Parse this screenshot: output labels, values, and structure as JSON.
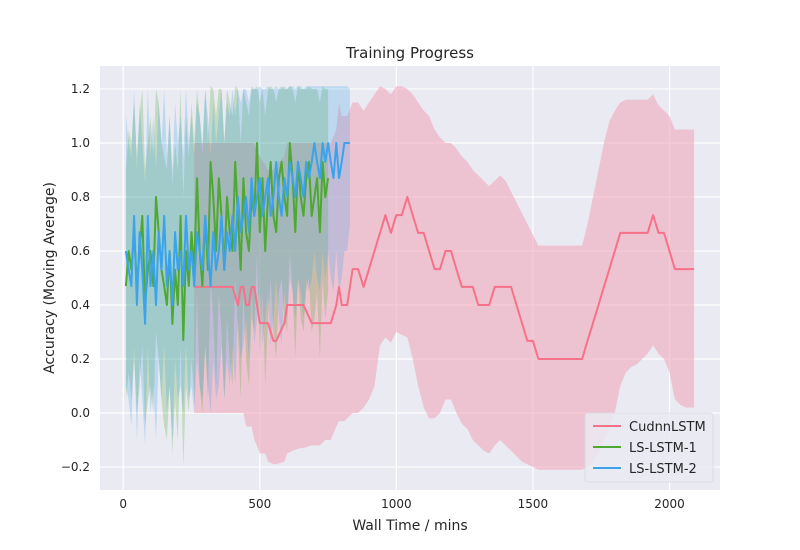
{
  "chart_data": {
    "type": "line",
    "title": "Training Progress",
    "xlabel": "Wall Time / mins",
    "ylabel": "Accuracy (Moving Average)",
    "xlim": [
      -85,
      2185
    ],
    "ylim": [
      -0.285,
      1.285
    ],
    "xticks": [
      0,
      500,
      1000,
      1500,
      2000
    ],
    "xtick_labels": [
      "0",
      "500",
      "1000",
      "1500",
      "2000"
    ],
    "yticks": [
      -0.2,
      0.0,
      0.2,
      0.4,
      0.6,
      0.8,
      1.0,
      1.2
    ],
    "ytick_labels": [
      "−0.2",
      "0.0",
      "0.2",
      "0.4",
      "0.6",
      "0.8",
      "1.0",
      "1.2"
    ],
    "grid": true,
    "background_color": "#eaeaf2",
    "legend_position": "lower-right",
    "series": [
      {
        "name": "CudnnLSTM",
        "color": "#f77189",
        "band_color": "#f0a8bb",
        "band_opacity": 0.6,
        "x": [
          260,
          300,
          400,
          420,
          430,
          440,
          450,
          460,
          470,
          480,
          490,
          500,
          520,
          530,
          550,
          560,
          590,
          600,
          620,
          650,
          660,
          690,
          700,
          720,
          740,
          750,
          760,
          780,
          790,
          800,
          810,
          820,
          840,
          860,
          880,
          900,
          920,
          940,
          960,
          980,
          1000,
          1020,
          1040,
          1060,
          1080,
          1100,
          1120,
          1140,
          1160,
          1180,
          1200,
          1220,
          1240,
          1260,
          1280,
          1300,
          1320,
          1340,
          1360,
          1380,
          1400,
          1420,
          1440,
          1460,
          1480,
          1500,
          1520,
          1540,
          1560,
          1580,
          1600,
          1620,
          1640,
          1660,
          1680,
          1700,
          1720,
          1740,
          1760,
          1780,
          1800,
          1820,
          1840,
          1860,
          1880,
          1900,
          1920,
          1940,
          1960,
          1980,
          2000,
          2020,
          2040,
          2060,
          2080,
          2090
        ],
        "values": [
          0.467,
          0.467,
          0.467,
          0.4,
          0.467,
          0.467,
          0.4,
          0.4,
          0.467,
          0.467,
          0.4,
          0.333,
          0.333,
          0.333,
          0.267,
          0.267,
          0.333,
          0.4,
          0.4,
          0.4,
          0.4,
          0.333,
          0.333,
          0.333,
          0.333,
          0.333,
          0.333,
          0.4,
          0.467,
          0.4,
          0.4,
          0.4,
          0.533,
          0.533,
          0.467,
          0.533,
          0.6,
          0.667,
          0.733,
          0.667,
          0.733,
          0.733,
          0.8,
          0.733,
          0.667,
          0.667,
          0.6,
          0.533,
          0.533,
          0.6,
          0.6,
          0.533,
          0.467,
          0.467,
          0.467,
          0.4,
          0.4,
          0.4,
          0.467,
          0.467,
          0.467,
          0.467,
          0.4,
          0.333,
          0.267,
          0.267,
          0.2,
          0.2,
          0.2,
          0.2,
          0.2,
          0.2,
          0.2,
          0.2,
          0.2,
          0.267,
          0.333,
          0.4,
          0.467,
          0.533,
          0.6,
          0.667,
          0.667,
          0.667,
          0.667,
          0.667,
          0.667,
          0.733,
          0.667,
          0.667,
          0.6,
          0.533,
          0.533,
          0.533,
          0.533,
          0.533
        ],
        "upper": [
          1.0,
          1.0,
          1.0,
          1.0,
          1.0,
          1.0,
          1.0,
          1.0,
          1.0,
          1.0,
          0.97,
          0.95,
          0.92,
          0.9,
          0.9,
          0.92,
          0.95,
          1.0,
          1.0,
          1.0,
          1.0,
          1.0,
          1.0,
          1.0,
          1.0,
          1.0,
          1.0,
          1.05,
          1.15,
          1.1,
          1.1,
          1.1,
          1.15,
          1.15,
          1.12,
          1.15,
          1.18,
          1.21,
          1.2,
          1.18,
          1.21,
          1.21,
          1.2,
          1.18,
          1.15,
          1.12,
          1.1,
          1.05,
          1.02,
          1.0,
          1.0,
          0.98,
          0.95,
          0.93,
          0.9,
          0.88,
          0.86,
          0.84,
          0.86,
          0.88,
          0.86,
          0.82,
          0.78,
          0.74,
          0.7,
          0.66,
          0.62,
          0.62,
          0.62,
          0.62,
          0.62,
          0.62,
          0.62,
          0.62,
          0.62,
          0.7,
          0.8,
          0.9,
          1.0,
          1.08,
          1.12,
          1.15,
          1.16,
          1.16,
          1.16,
          1.16,
          1.16,
          1.18,
          1.14,
          1.12,
          1.1,
          1.05,
          1.05,
          1.05,
          1.05,
          1.05
        ],
        "lower": [
          0.0,
          0.0,
          0.0,
          0.0,
          0.0,
          0.0,
          -0.05,
          -0.05,
          -0.05,
          -0.1,
          -0.12,
          -0.15,
          -0.15,
          -0.18,
          -0.19,
          -0.19,
          -0.18,
          -0.15,
          -0.14,
          -0.13,
          -0.13,
          -0.12,
          -0.12,
          -0.12,
          -0.1,
          -0.1,
          -0.1,
          -0.05,
          -0.03,
          -0.03,
          -0.03,
          -0.02,
          0.0,
          0.0,
          0.02,
          0.05,
          0.1,
          0.25,
          0.28,
          0.26,
          0.3,
          0.29,
          0.28,
          0.2,
          0.1,
          0.02,
          -0.02,
          -0.02,
          0.0,
          0.05,
          0.05,
          0.0,
          -0.04,
          -0.06,
          -0.1,
          -0.12,
          -0.14,
          -0.15,
          -0.12,
          -0.1,
          -0.12,
          -0.14,
          -0.16,
          -0.18,
          -0.19,
          -0.2,
          -0.21,
          -0.21,
          -0.21,
          -0.21,
          -0.21,
          -0.21,
          -0.21,
          -0.21,
          -0.21,
          -0.2,
          -0.18,
          -0.15,
          -0.1,
          -0.05,
          0.0,
          0.1,
          0.15,
          0.17,
          0.18,
          0.2,
          0.22,
          0.25,
          0.22,
          0.2,
          0.15,
          0.05,
          0.03,
          0.02,
          0.02,
          0.02
        ]
      },
      {
        "name": "LS-LSTM-1",
        "color": "#4fa831",
        "band_color": "#4fa831",
        "band_opacity": 0.25,
        "x": [
          10,
          20,
          30,
          40,
          50,
          60,
          70,
          80,
          90,
          100,
          110,
          120,
          130,
          140,
          150,
          160,
          170,
          180,
          190,
          200,
          210,
          220,
          230,
          240,
          250,
          260,
          270,
          280,
          290,
          300,
          310,
          320,
          330,
          340,
          350,
          360,
          370,
          380,
          390,
          400,
          410,
          420,
          430,
          440,
          450,
          460,
          470,
          480,
          490,
          500,
          510,
          520,
          530,
          540,
          550,
          560,
          570,
          580,
          590,
          600,
          610,
          620,
          630,
          640,
          650,
          660,
          670,
          680,
          690,
          700,
          710,
          720,
          730,
          740,
          750
        ],
        "values": [
          0.47,
          0.6,
          0.53,
          0.67,
          0.47,
          0.6,
          0.73,
          0.4,
          0.53,
          0.6,
          0.47,
          0.8,
          0.67,
          0.53,
          0.47,
          0.4,
          0.6,
          0.33,
          0.53,
          0.4,
          0.73,
          0.27,
          0.6,
          0.47,
          0.67,
          0.53,
          0.87,
          0.6,
          0.47,
          0.73,
          0.53,
          0.93,
          0.8,
          0.6,
          0.87,
          0.73,
          0.53,
          0.8,
          0.67,
          0.6,
          0.93,
          0.73,
          0.53,
          0.87,
          0.67,
          0.6,
          0.8,
          0.73,
          1.0,
          0.67,
          0.87,
          0.6,
          0.8,
          0.93,
          0.73,
          0.67,
          0.87,
          0.93,
          0.8,
          0.73,
          1.0,
          0.87,
          0.67,
          0.93,
          0.8,
          0.73,
          0.87,
          0.93,
          0.73,
          0.8,
          0.87,
          0.67,
          0.93,
          0.8,
          0.87
        ],
        "upper": [
          0.9,
          1.05,
          1.0,
          1.15,
          0.95,
          1.1,
          1.2,
          0.9,
          1.0,
          1.1,
          0.95,
          1.2,
          1.15,
          1.0,
          0.95,
          0.9,
          1.1,
          0.85,
          1.0,
          0.9,
          1.2,
          0.8,
          1.1,
          0.95,
          1.15,
          1.0,
          1.2,
          1.1,
          0.95,
          1.2,
          1.0,
          1.21,
          1.2,
          1.1,
          1.2,
          1.2,
          1.0,
          1.2,
          1.15,
          1.1,
          1.21,
          1.2,
          1.0,
          1.2,
          1.15,
          1.1,
          1.2,
          1.2,
          1.21,
          1.15,
          1.2,
          1.1,
          1.2,
          1.21,
          1.2,
          1.15,
          1.2,
          1.21,
          1.2,
          1.2,
          1.21,
          1.2,
          1.15,
          1.21,
          1.2,
          1.2,
          1.2,
          1.21,
          1.2,
          1.2,
          1.2,
          1.15,
          1.21,
          1.2,
          1.2
        ],
        "lower": [
          0.05,
          0.15,
          0.05,
          0.2,
          0.0,
          0.1,
          0.25,
          -0.05,
          0.05,
          0.1,
          0.0,
          0.3,
          0.2,
          0.05,
          -0.05,
          -0.1,
          0.1,
          -0.15,
          0.05,
          -0.1,
          0.25,
          -0.2,
          0.1,
          0.0,
          0.2,
          0.05,
          0.45,
          0.1,
          0.0,
          0.25,
          0.05,
          0.5,
          0.35,
          0.1,
          0.45,
          0.3,
          0.05,
          0.35,
          0.2,
          0.1,
          0.5,
          0.3,
          0.05,
          0.45,
          0.2,
          0.1,
          0.35,
          0.3,
          0.6,
          0.2,
          0.45,
          0.1,
          0.35,
          0.5,
          0.3,
          0.2,
          0.45,
          0.5,
          0.35,
          0.3,
          0.6,
          0.45,
          0.2,
          0.5,
          0.35,
          0.3,
          0.45,
          0.5,
          0.3,
          0.35,
          0.45,
          0.2,
          0.5,
          0.35,
          0.45
        ]
      },
      {
        "name": "LS-LSTM-2",
        "color": "#3ba3ec",
        "band_color": "#3ba3ec",
        "band_opacity": 0.25,
        "x": [
          10,
          20,
          30,
          40,
          50,
          60,
          70,
          80,
          90,
          100,
          110,
          120,
          130,
          140,
          150,
          160,
          170,
          180,
          190,
          200,
          210,
          220,
          230,
          240,
          250,
          260,
          270,
          280,
          290,
          300,
          310,
          320,
          330,
          340,
          350,
          360,
          370,
          380,
          390,
          400,
          410,
          420,
          430,
          440,
          450,
          460,
          470,
          480,
          490,
          500,
          510,
          520,
          530,
          540,
          550,
          560,
          570,
          580,
          590,
          600,
          610,
          620,
          630,
          640,
          650,
          660,
          670,
          680,
          690,
          700,
          710,
          720,
          730,
          740,
          750,
          760,
          770,
          780,
          790,
          800,
          810,
          820,
          830
        ],
        "values": [
          0.6,
          0.53,
          0.47,
          0.73,
          0.4,
          0.67,
          0.53,
          0.33,
          0.73,
          0.47,
          0.6,
          0.4,
          0.67,
          0.53,
          0.73,
          0.47,
          0.6,
          0.4,
          0.67,
          0.53,
          0.6,
          0.47,
          0.73,
          0.53,
          0.6,
          0.47,
          0.67,
          0.6,
          0.53,
          0.73,
          0.6,
          0.47,
          0.67,
          0.53,
          0.6,
          0.73,
          0.53,
          0.67,
          0.6,
          0.73,
          0.6,
          0.8,
          0.67,
          0.73,
          0.8,
          0.67,
          0.87,
          0.73,
          0.8,
          0.87,
          0.73,
          0.8,
          0.87,
          0.73,
          0.8,
          0.93,
          0.8,
          0.73,
          0.87,
          0.8,
          0.93,
          0.87,
          0.8,
          0.93,
          0.87,
          0.8,
          0.93,
          0.87,
          0.93,
          1.0,
          0.93,
          0.87,
          1.0,
          0.93,
          1.0,
          0.93,
          0.87,
          1.0,
          0.87,
          0.93,
          1.0,
          1.0,
          1.0
        ],
        "upper": [
          1.1,
          1.0,
          0.95,
          1.2,
          0.9,
          1.15,
          1.0,
          0.85,
          1.2,
          0.95,
          1.1,
          0.9,
          1.15,
          1.0,
          1.2,
          0.95,
          1.1,
          0.9,
          1.15,
          1.0,
          1.1,
          0.95,
          1.2,
          1.0,
          1.1,
          0.95,
          1.15,
          1.1,
          1.0,
          1.2,
          1.1,
          0.95,
          1.15,
          1.0,
          1.1,
          1.2,
          1.0,
          1.15,
          1.1,
          1.2,
          1.1,
          1.2,
          1.15,
          1.2,
          1.2,
          1.15,
          1.21,
          1.2,
          1.2,
          1.21,
          1.2,
          1.2,
          1.21,
          1.2,
          1.2,
          1.21,
          1.2,
          1.2,
          1.21,
          1.2,
          1.21,
          1.21,
          1.2,
          1.21,
          1.21,
          1.2,
          1.21,
          1.21,
          1.21,
          1.21,
          1.21,
          1.21,
          1.21,
          1.21,
          1.21,
          1.21,
          1.21,
          1.21,
          1.21,
          1.21,
          1.21,
          1.21,
          1.2
        ],
        "lower": [
          0.1,
          0.05,
          -0.05,
          0.25,
          -0.1,
          0.2,
          0.05,
          -0.12,
          0.25,
          0.0,
          0.1,
          -0.1,
          0.2,
          0.05,
          0.25,
          0.0,
          0.1,
          -0.1,
          0.2,
          0.05,
          0.1,
          0.0,
          0.25,
          0.05,
          0.1,
          0.0,
          0.2,
          0.1,
          0.05,
          0.25,
          0.1,
          0.0,
          0.2,
          0.05,
          0.1,
          0.25,
          0.05,
          0.2,
          0.1,
          0.25,
          0.1,
          0.35,
          0.2,
          0.25,
          0.35,
          0.2,
          0.45,
          0.25,
          0.35,
          0.45,
          0.25,
          0.35,
          0.45,
          0.25,
          0.35,
          0.5,
          0.35,
          0.25,
          0.45,
          0.35,
          0.5,
          0.45,
          0.35,
          0.5,
          0.45,
          0.35,
          0.5,
          0.45,
          0.5,
          0.6,
          0.5,
          0.45,
          0.6,
          0.5,
          0.6,
          0.5,
          0.45,
          0.6,
          0.45,
          0.5,
          0.6,
          0.6,
          0.7
        ]
      }
    ]
  }
}
